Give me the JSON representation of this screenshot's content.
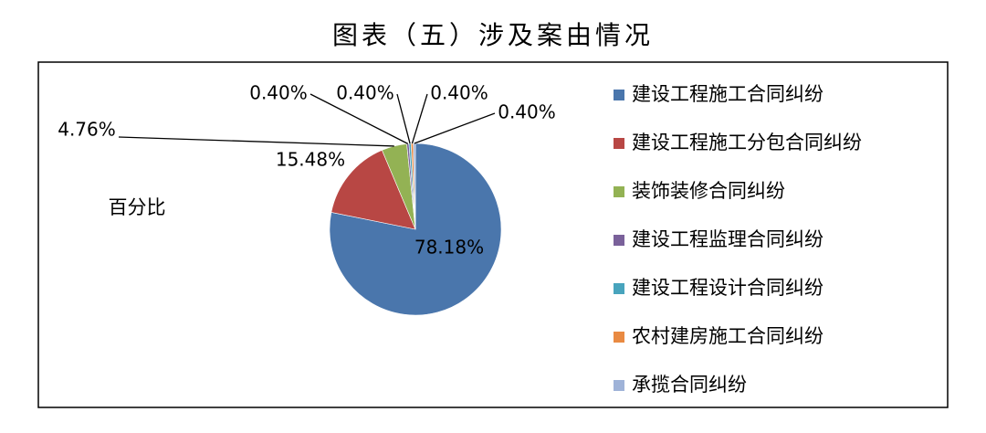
{
  "chart_data": {
    "type": "pie",
    "title": "图表（五）涉及案由情况",
    "series_name": "百分比",
    "categories": [
      "建设工程施工合同纠纷",
      "建设工程施工分包合同纠纷",
      "装饰装修合同纠纷",
      "建设工程监理合同纠纷",
      "建设工程设计合同纠纷",
      "农村建房施工合同纠纷",
      "承揽合同纠纷"
    ],
    "values": [
      78.18,
      15.48,
      4.76,
      0.4,
      0.4,
      0.4,
      0.4
    ],
    "value_labels": [
      "78.18%",
      "15.48%",
      "4.76%",
      "0.40%",
      "0.40%",
      "0.40%",
      "0.40%"
    ],
    "colors": [
      "#4a76ac",
      "#b84744",
      "#93b254",
      "#7a619a",
      "#48a4bd",
      "#e98a42",
      "#9fb3d8"
    ],
    "legend": "right"
  }
}
